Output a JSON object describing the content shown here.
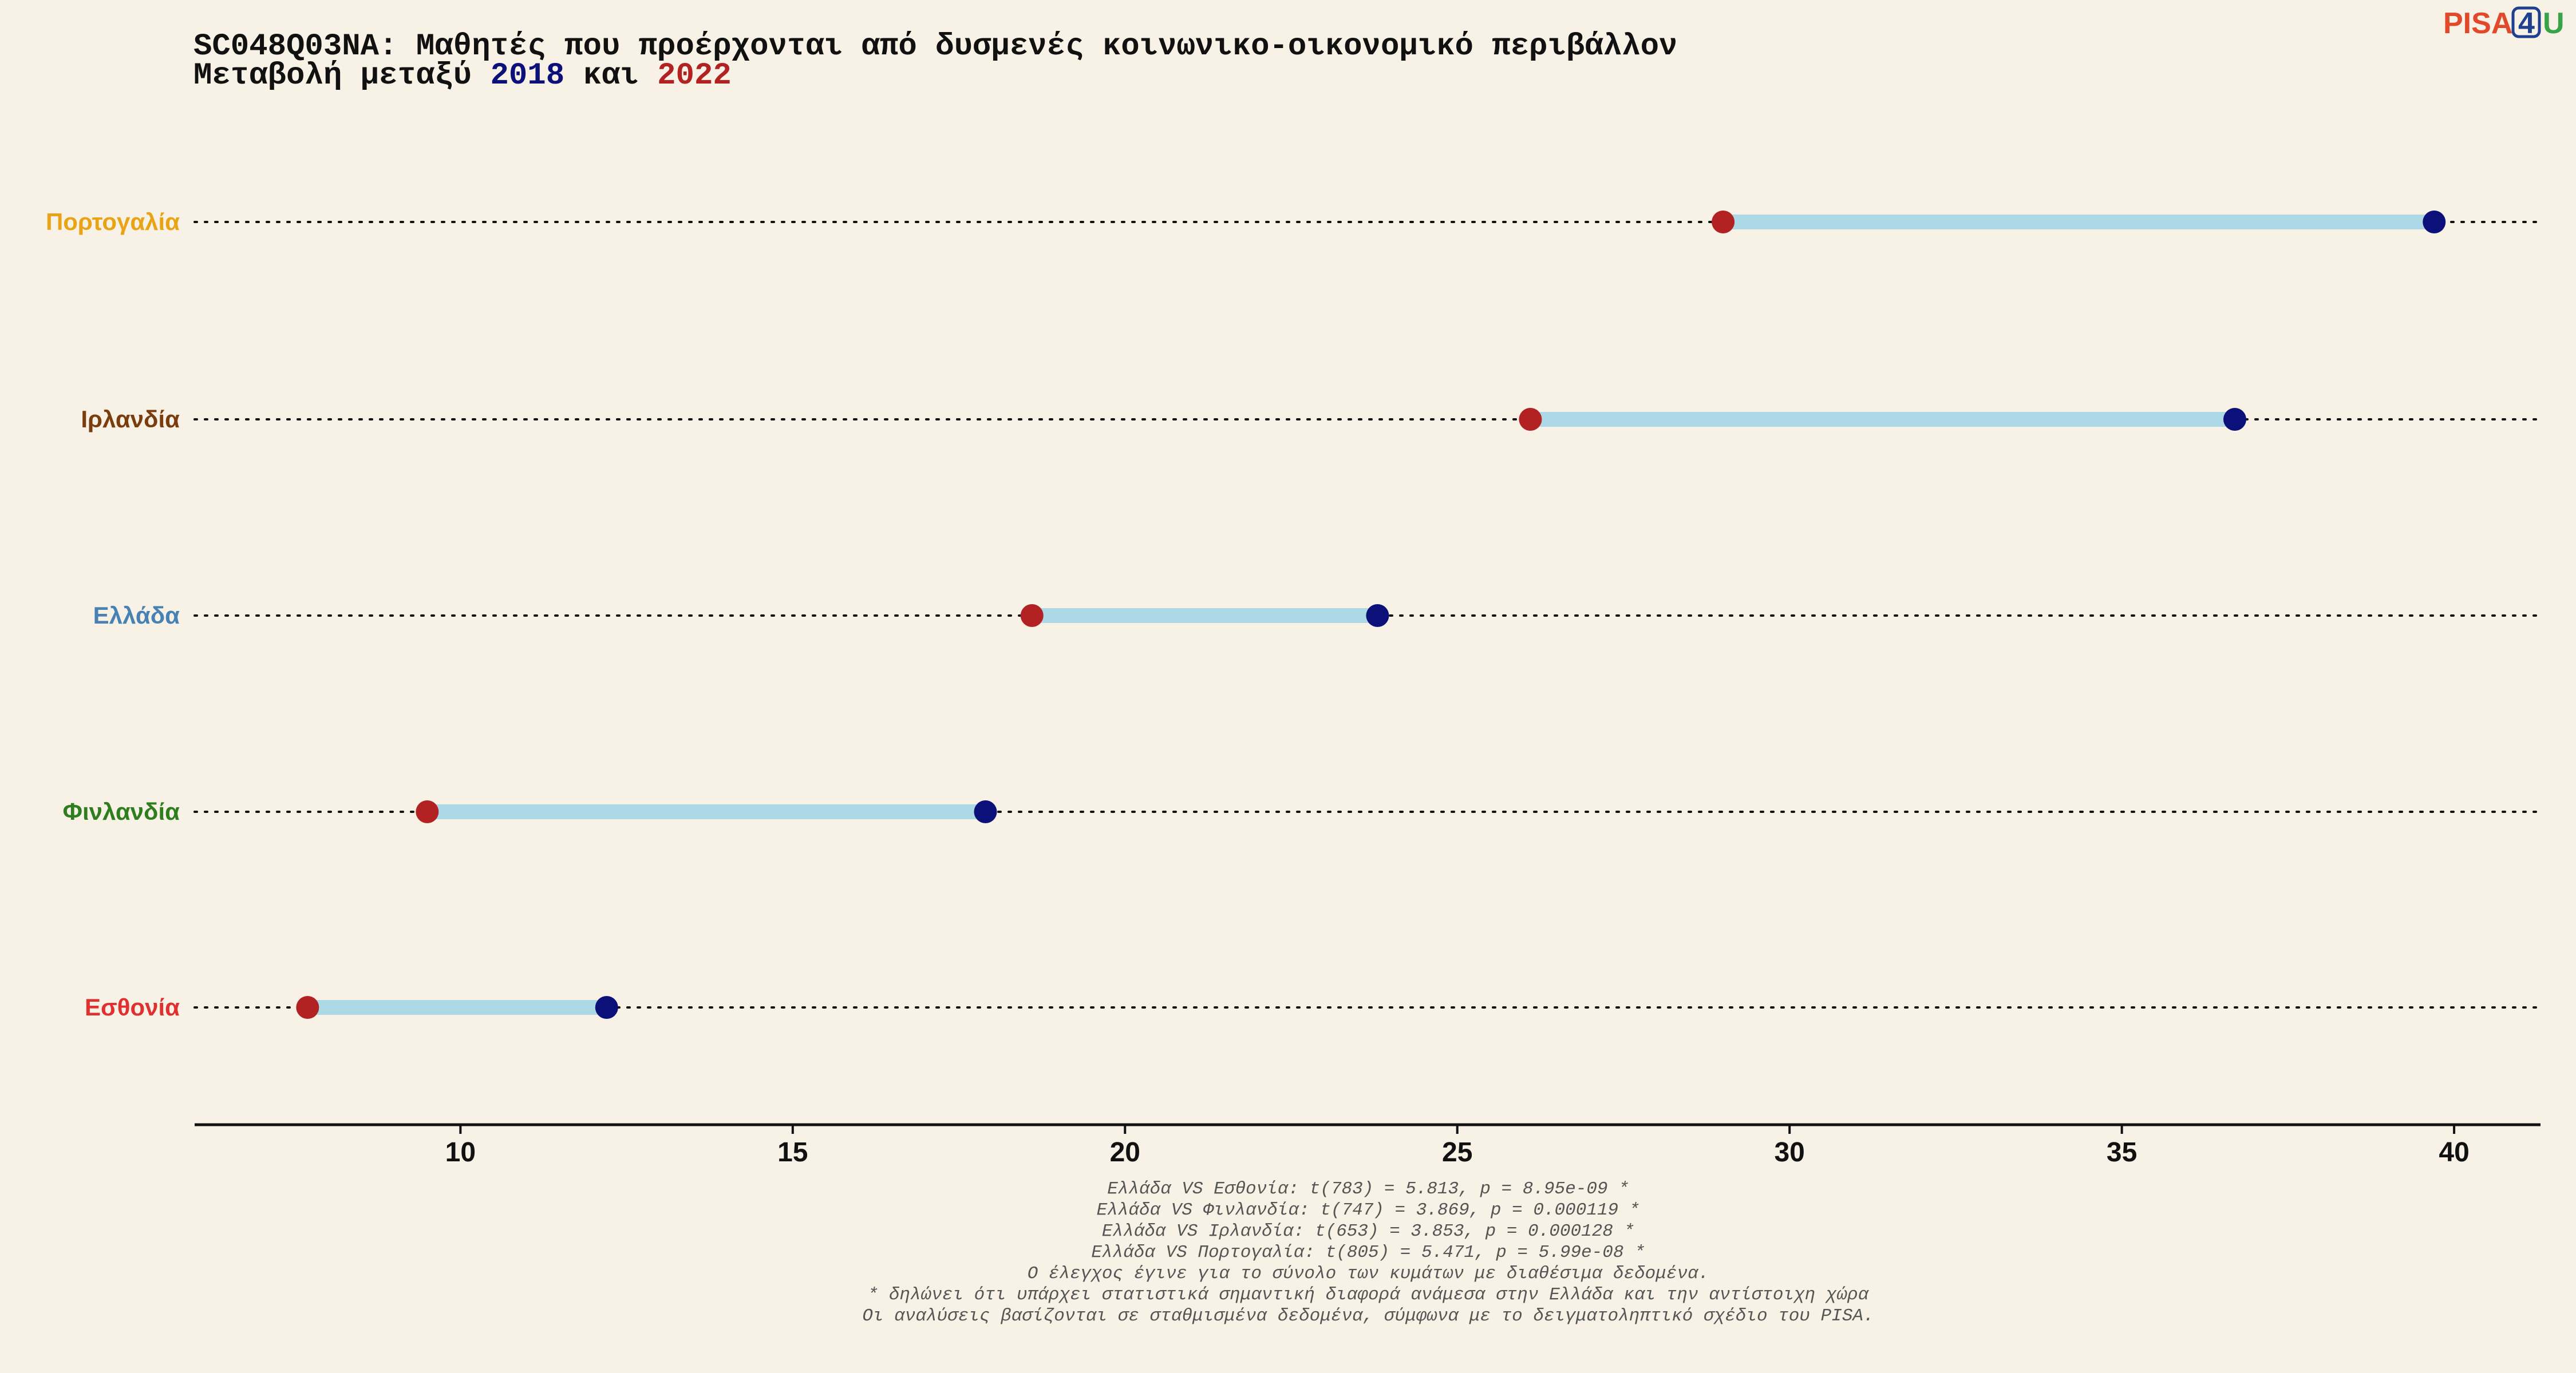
{
  "title": {
    "line1": "SC048Q03NA: Μαθητές που προέρχονται από δυσμενές κοινωνικο-οικονομικό περιβάλλον",
    "line2_prefix": "Μεταβολή μεταξύ ",
    "year_a": "2018",
    "line2_mid": " και ",
    "year_b": "2022"
  },
  "logo": {
    "left": "PISA",
    "mid": "4",
    "right": "U"
  },
  "colors": {
    "background": "#f7f2e5",
    "year_2018": "#0b1178",
    "year_2022": "#b22222",
    "segment": "#add8e6"
  },
  "chart_data": {
    "type": "dumbbell",
    "xlim": [
      6.0,
      41.3
    ],
    "xticks": [
      10,
      15,
      20,
      25,
      30,
      35,
      40
    ],
    "categories": [
      {
        "name": "Πορτογαλία",
        "color": "#e8a317",
        "v2018": 39.7,
        "v2022": 29.0
      },
      {
        "name": "Ιρλανδία",
        "color": "#7a3e0e",
        "v2018": 36.7,
        "v2022": 26.1
      },
      {
        "name": "Ελλάδα",
        "color": "#4682b4",
        "v2018": 23.8,
        "v2022": 18.6
      },
      {
        "name": "Φινλανδία",
        "color": "#2e7d1f",
        "v2018": 17.9,
        "v2022": 9.5
      },
      {
        "name": "Εσθονία",
        "color": "#e03030",
        "v2018": 12.2,
        "v2022": 7.7
      }
    ]
  },
  "notes": [
    "Ελλάδα VS Εσθονία: t(783) = 5.813, p = 8.95e-09 *",
    "Ελλάδα VS Φινλανδία: t(747) = 3.869, p = 0.000119 *",
    "Ελλάδα VS Ιρλανδία: t(653) = 3.853, p = 0.000128 *",
    "Ελλάδα VS Πορτογαλία: t(805) = 5.471, p = 5.99e-08 *",
    "Ο έλεγχος έγινε για το σύνολο των κυμάτων με διαθέσιμα δεδομένα.",
    "* δηλώνει ότι υπάρχει στατιστικά σημαντική διαφορά ανάμεσα στην Ελλάδα και την αντίστοιχη χώρα",
    "Οι αναλύσεις βασίζονται σε σταθμισμένα δεδομένα, σύμφωνα με το δειγματοληπτικό σχέδιο του PISA."
  ]
}
